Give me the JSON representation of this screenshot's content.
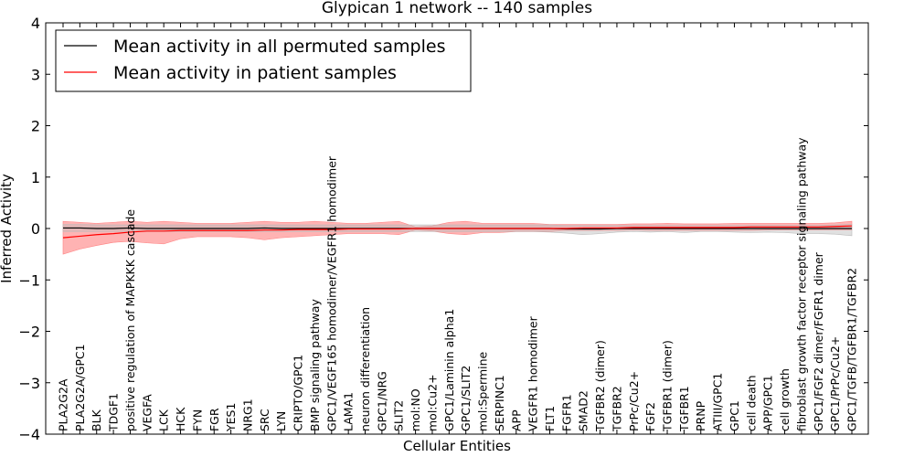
{
  "chart_data": {
    "type": "line",
    "title": "Glypican 1 network -- 140 samples",
    "xlabel": "Cellular Entities",
    "ylabel": "Inferred Activity",
    "ylim": [
      -4,
      4
    ],
    "yticks": [
      -4,
      -3,
      -2,
      -1,
      0,
      1,
      2,
      3,
      4
    ],
    "ytick_labels": [
      "−4",
      "−3",
      "−2",
      "−1",
      "0",
      "1",
      "2",
      "3",
      "4"
    ],
    "grid": false,
    "legend_position": "top-left",
    "categories": [
      "PLA2G2A",
      "PLA2G2A/GPC1",
      "BLK",
      "TDGF1",
      "positive regulation of MAPKKK cascade",
      "VEGFA",
      "LCK",
      "HCK",
      "FYN",
      "FGR",
      "YES1",
      "NRG1",
      "SRC",
      "LYN",
      "CRIPTO/GPC1",
      "BMP signaling pathway",
      "GPC1/VEGF165 homodimer/VEGFR1 homodimer",
      "LAMA1",
      "neuron differentiation",
      "GPC1/NRG",
      "SLIT2",
      "mol:NO",
      "mol:Cu2+",
      "GPC1/Laminin alpha1",
      "GPC1/SLIT2",
      "mol:Spermine",
      "SERPINC1",
      "APP",
      "VEGFR1 homodimer",
      "FLT1",
      "FGFR1",
      "SMAD2",
      "TGFBR2 (dimer)",
      "TGFBR2",
      "PrPc/Cu2+",
      "FGF2",
      "TGFBR1 (dimer)",
      "TGFBR1",
      "PRNP",
      "ATIII/GPC1",
      "GPC1",
      "cell death",
      "APP/GPC1",
      "cell growth",
      "fibroblast growth factor receptor signaling pathway",
      "GPC1/FGF2 dimer/FGFR1 dimer",
      "GPC1/PrPc/Cu2+",
      "GPC1/TGFB/TGFBR1/TGFBR2"
    ],
    "series": [
      {
        "name": "Mean activity in all permuted samples",
        "color": "#000000",
        "band_color": "#bbbbbb",
        "values": [
          0.01,
          0.01,
          0.0,
          0.0,
          0.01,
          0.0,
          0.0,
          0.0,
          0.0,
          0.0,
          0.0,
          0.0,
          0.01,
          0.0,
          0.0,
          0.0,
          0.0,
          0.0,
          0.0,
          0.0,
          0.0,
          0.0,
          0.0,
          0.0,
          0.0,
          0.0,
          0.0,
          0.0,
          0.0,
          0.0,
          -0.01,
          -0.01,
          -0.01,
          0.0,
          0.0,
          0.0,
          0.0,
          0.0,
          0.0,
          0.0,
          0.0,
          0.0,
          0.0,
          0.0,
          0.0,
          0.0,
          0.0,
          0.0
        ],
        "lower": [
          -0.06,
          -0.06,
          -0.06,
          -0.06,
          -0.06,
          -0.06,
          -0.06,
          -0.06,
          -0.06,
          -0.06,
          -0.06,
          -0.06,
          -0.06,
          -0.06,
          -0.06,
          -0.06,
          -0.06,
          -0.06,
          -0.06,
          -0.06,
          -0.06,
          -0.06,
          -0.06,
          -0.06,
          -0.06,
          -0.06,
          -0.06,
          -0.06,
          -0.06,
          -0.07,
          -0.09,
          -0.12,
          -0.1,
          -0.07,
          -0.06,
          -0.07,
          -0.06,
          -0.08,
          -0.06,
          -0.06,
          -0.07,
          -0.08,
          -0.07,
          -0.08,
          -0.1,
          -0.1,
          -0.11,
          -0.14
        ],
        "upper": [
          0.08,
          0.08,
          0.07,
          0.07,
          0.07,
          0.07,
          0.07,
          0.07,
          0.07,
          0.07,
          0.07,
          0.07,
          0.07,
          0.07,
          0.07,
          0.07,
          0.07,
          0.07,
          0.07,
          0.07,
          0.07,
          0.07,
          0.07,
          0.07,
          0.07,
          0.07,
          0.07,
          0.07,
          0.07,
          0.07,
          0.06,
          0.06,
          0.06,
          0.06,
          0.06,
          0.06,
          0.06,
          0.06,
          0.06,
          0.06,
          0.06,
          0.06,
          0.06,
          0.06,
          0.06,
          0.06,
          0.07,
          0.08
        ]
      },
      {
        "name": "Mean activity in patient samples",
        "color": "#ff0000",
        "band_color": "#ff8080",
        "values": [
          -0.18,
          -0.15,
          -0.12,
          -0.1,
          -0.07,
          -0.05,
          -0.05,
          -0.04,
          -0.04,
          -0.04,
          -0.04,
          -0.04,
          -0.03,
          -0.03,
          -0.02,
          -0.02,
          -0.02,
          -0.01,
          -0.01,
          -0.01,
          -0.01,
          0.0,
          0.0,
          0.0,
          0.0,
          0.0,
          0.0,
          0.0,
          0.0,
          0.0,
          0.0,
          0.01,
          0.01,
          0.01,
          0.02,
          0.02,
          0.02,
          0.02,
          0.02,
          0.02,
          0.02,
          0.03,
          0.03,
          0.03,
          0.03,
          0.03,
          0.04,
          0.05
        ],
        "lower": [
          -0.5,
          -0.4,
          -0.33,
          -0.27,
          -0.25,
          -0.28,
          -0.3,
          -0.2,
          -0.16,
          -0.16,
          -0.16,
          -0.18,
          -0.22,
          -0.18,
          -0.16,
          -0.14,
          -0.12,
          -0.1,
          -0.1,
          -0.1,
          -0.12,
          -0.03,
          -0.05,
          -0.1,
          -0.12,
          -0.08,
          -0.08,
          -0.06,
          -0.06,
          -0.06,
          -0.04,
          -0.04,
          -0.04,
          -0.04,
          -0.03,
          -0.04,
          -0.04,
          -0.04,
          -0.04,
          -0.04,
          -0.04,
          -0.04,
          -0.03,
          -0.03,
          -0.03,
          -0.03,
          -0.03,
          -0.03
        ],
        "upper": [
          0.14,
          0.12,
          0.1,
          0.12,
          0.14,
          0.12,
          0.14,
          0.12,
          0.1,
          0.1,
          0.1,
          0.12,
          0.14,
          0.12,
          0.12,
          0.14,
          0.12,
          0.1,
          0.1,
          0.12,
          0.14,
          0.03,
          0.05,
          0.12,
          0.14,
          0.1,
          0.1,
          0.1,
          0.1,
          0.08,
          0.08,
          0.08,
          0.08,
          0.08,
          0.09,
          0.09,
          0.1,
          0.09,
          0.09,
          0.09,
          0.1,
          0.1,
          0.1,
          0.1,
          0.1,
          0.1,
          0.11,
          0.14
        ]
      }
    ]
  }
}
